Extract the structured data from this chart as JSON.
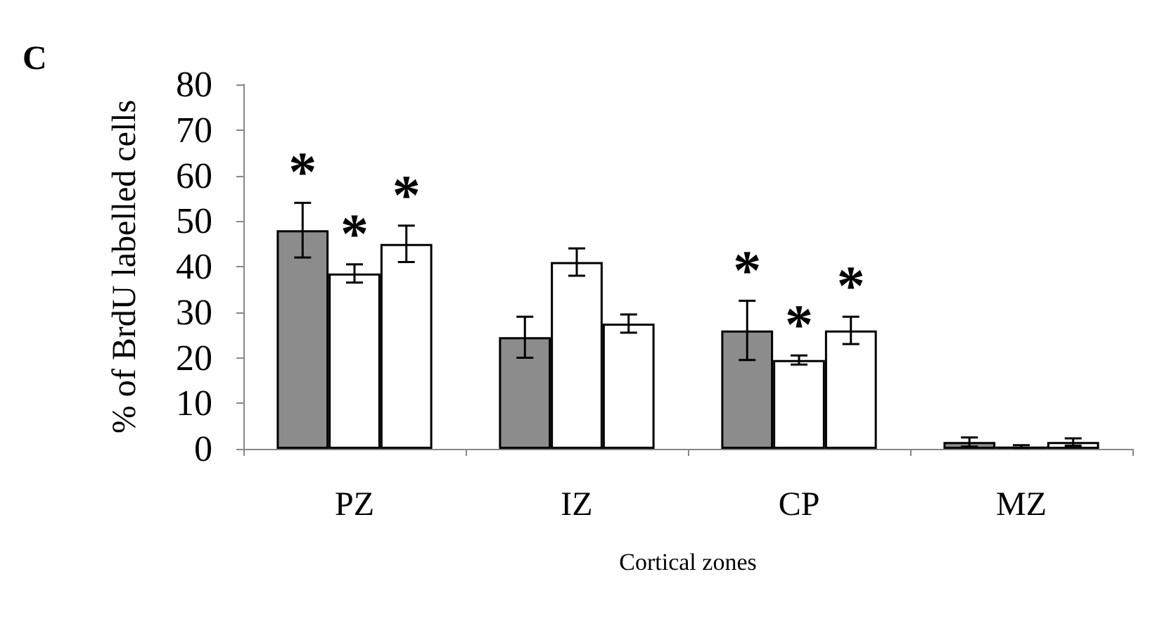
{
  "chart_data": {
    "type": "bar",
    "ylabel": "% of BrdU labelled cells",
    "xlabel": "Cortical zones",
    "annotations": [
      "C"
    ],
    "categories": [
      "PZ",
      "IZ",
      "CP",
      "MZ"
    ],
    "series": [
      {
        "color": "#8c8c8c",
        "values": [
          48,
          24.5,
          26,
          1.5
        ],
        "errors": [
          6,
          4.5,
          6.5,
          1
        ],
        "value_labels": [
          "*",
          null,
          "*",
          null
        ]
      },
      {
        "color": "#ffffff",
        "values": [
          38.5,
          41,
          19.5,
          0.5
        ],
        "errors": [
          2,
          3,
          1,
          0.3
        ],
        "value_labels": [
          "*",
          null,
          "*",
          null
        ]
      },
      {
        "color": "#ffffff",
        "values": [
          45,
          27.5,
          26,
          1.5
        ],
        "errors": [
          4,
          2,
          3,
          0.8
        ],
        "value_labels": [
          "*",
          null,
          "*",
          null
        ]
      }
    ],
    "ylim": [
      0,
      80
    ],
    "yticks": [
      0,
      10,
      20,
      30,
      40,
      50,
      60,
      70,
      80
    ]
  }
}
